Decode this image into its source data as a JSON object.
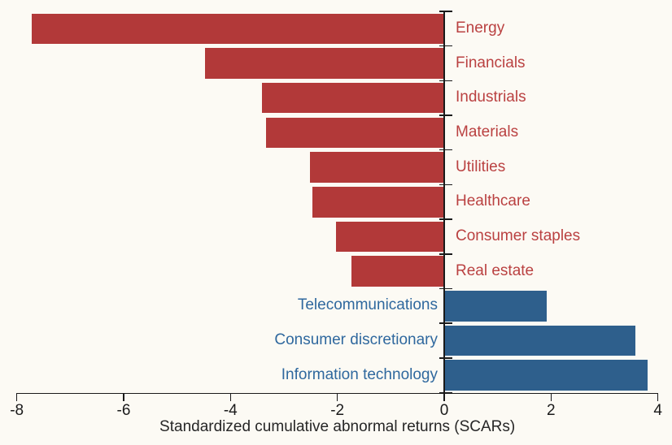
{
  "chart_data": {
    "type": "bar",
    "orientation": "horizontal",
    "title": "",
    "xlabel": "Standardized cumulative abnormal returns (SCARs)",
    "ylabel": "",
    "xlim": [
      -8,
      4
    ],
    "x_ticks": [
      -8,
      -6,
      -4,
      -2,
      0,
      2,
      4
    ],
    "x_tick_labels": [
      "-8",
      "-6",
      "-4",
      "-2",
      "0",
      "2",
      "4"
    ],
    "grid": false,
    "legend": null,
    "categories": [
      "Energy",
      "Financials",
      "Industrials",
      "Materials",
      "Utilities",
      "Healthcare",
      "Consumer staples",
      "Real estate",
      "Telecommunications",
      "Consumer discretionary",
      "Information technology"
    ],
    "values": [
      -7.72,
      -4.48,
      -3.41,
      -3.34,
      -2.51,
      -2.46,
      -2.02,
      -1.74,
      1.92,
      3.58,
      3.81
    ],
    "colors": {
      "negative_bar": "#B23939",
      "positive_bar": "#2E5F8C",
      "negative_label": "#BA4141",
      "positive_label": "#2F689E",
      "axis": "#1A1A1A",
      "background": "#FCFAF4"
    }
  }
}
